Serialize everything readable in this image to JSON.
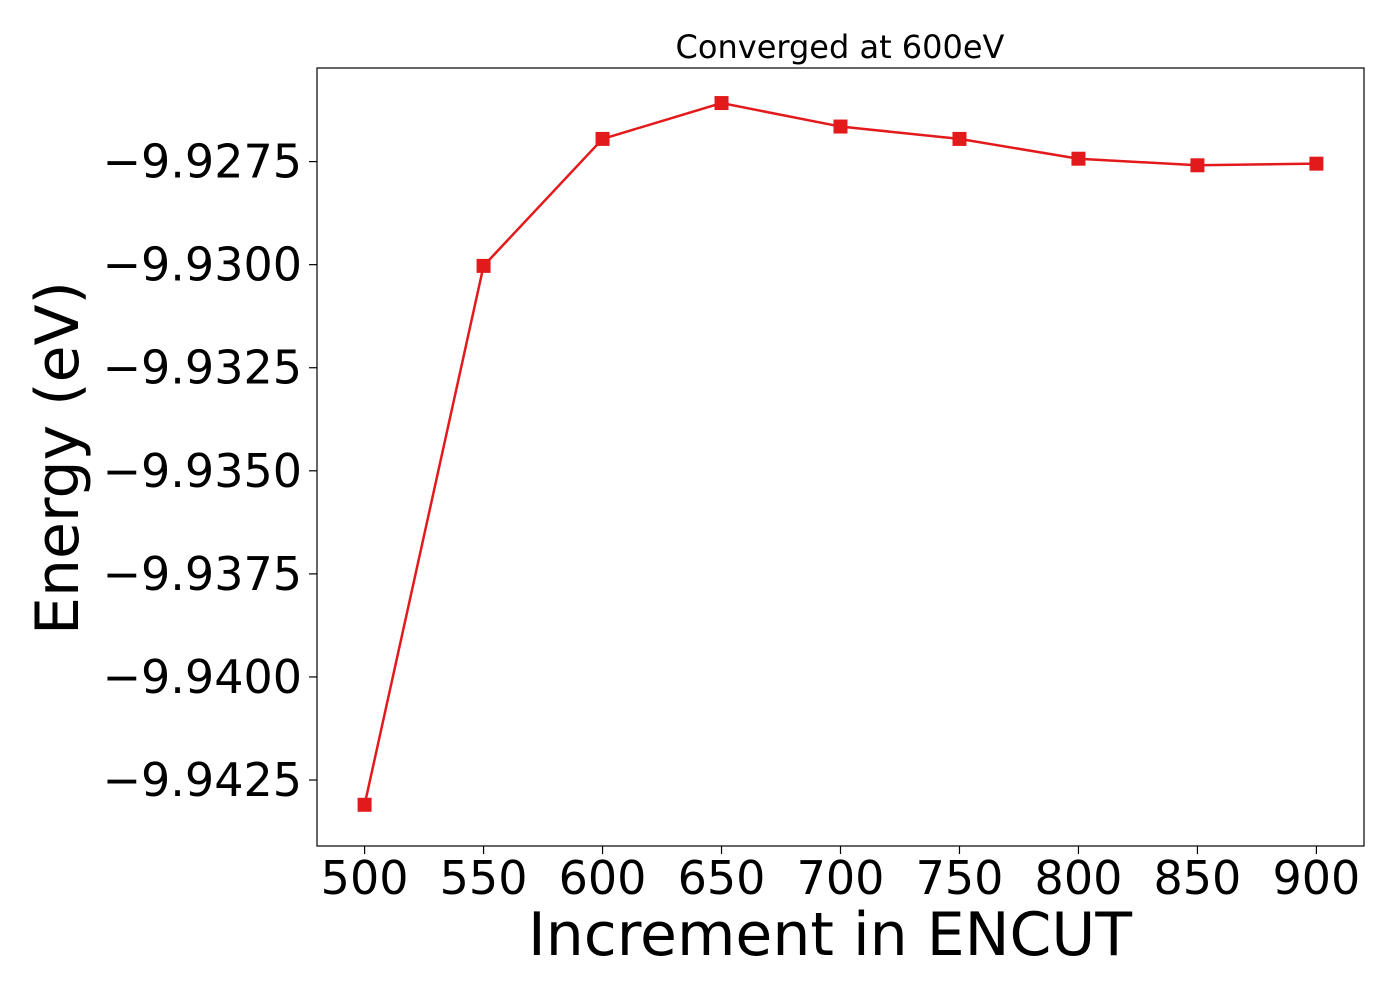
{
  "chart_data": {
    "type": "line",
    "title": "Converged at 600eV",
    "xlabel": "Increment in ENCUT",
    "ylabel": "Energy (eV)",
    "x": [
      500,
      550,
      600,
      650,
      700,
      750,
      800,
      850,
      900
    ],
    "series": [
      {
        "values": [
          -9.9431,
          -9.93003,
          -9.92695,
          -9.92608,
          -9.92665,
          -9.92695,
          -9.92743,
          -9.92759,
          -9.92755
        ],
        "color": "#e31a1c",
        "marker": "square"
      }
    ],
    "xlim": [
      480,
      920
    ],
    "ylim": [
      -9.9441,
      -9.92523
    ],
    "xticks": [
      500,
      550,
      600,
      650,
      700,
      750,
      800,
      850,
      900
    ],
    "xtick_labels": [
      "500",
      "550",
      "600",
      "650",
      "700",
      "750",
      "800",
      "850",
      "900"
    ],
    "yticks": [
      -9.9425,
      -9.94,
      -9.9375,
      -9.935,
      -9.9325,
      -9.93,
      -9.9275
    ],
    "ytick_labels": [
      "−9.9425",
      "−9.9400",
      "−9.9375",
      "−9.9350",
      "−9.9325",
      "−9.9300",
      "−9.9275"
    ],
    "grid": false,
    "legend": "none"
  }
}
